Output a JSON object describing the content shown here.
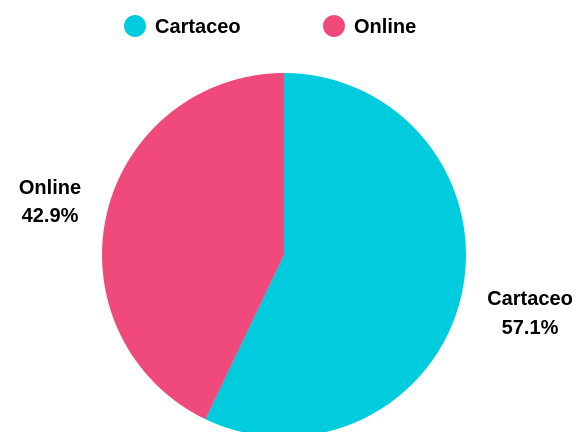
{
  "chart_data": {
    "type": "pie",
    "title": "",
    "legend_position": "top",
    "slices": [
      {
        "label": "Cartaceo",
        "value": 57.1,
        "value_label": "57.1%",
        "color": "#00CCDD"
      },
      {
        "label": "Online",
        "value": 42.9,
        "value_label": "42.9%",
        "color": "#F04A7C"
      }
    ]
  }
}
